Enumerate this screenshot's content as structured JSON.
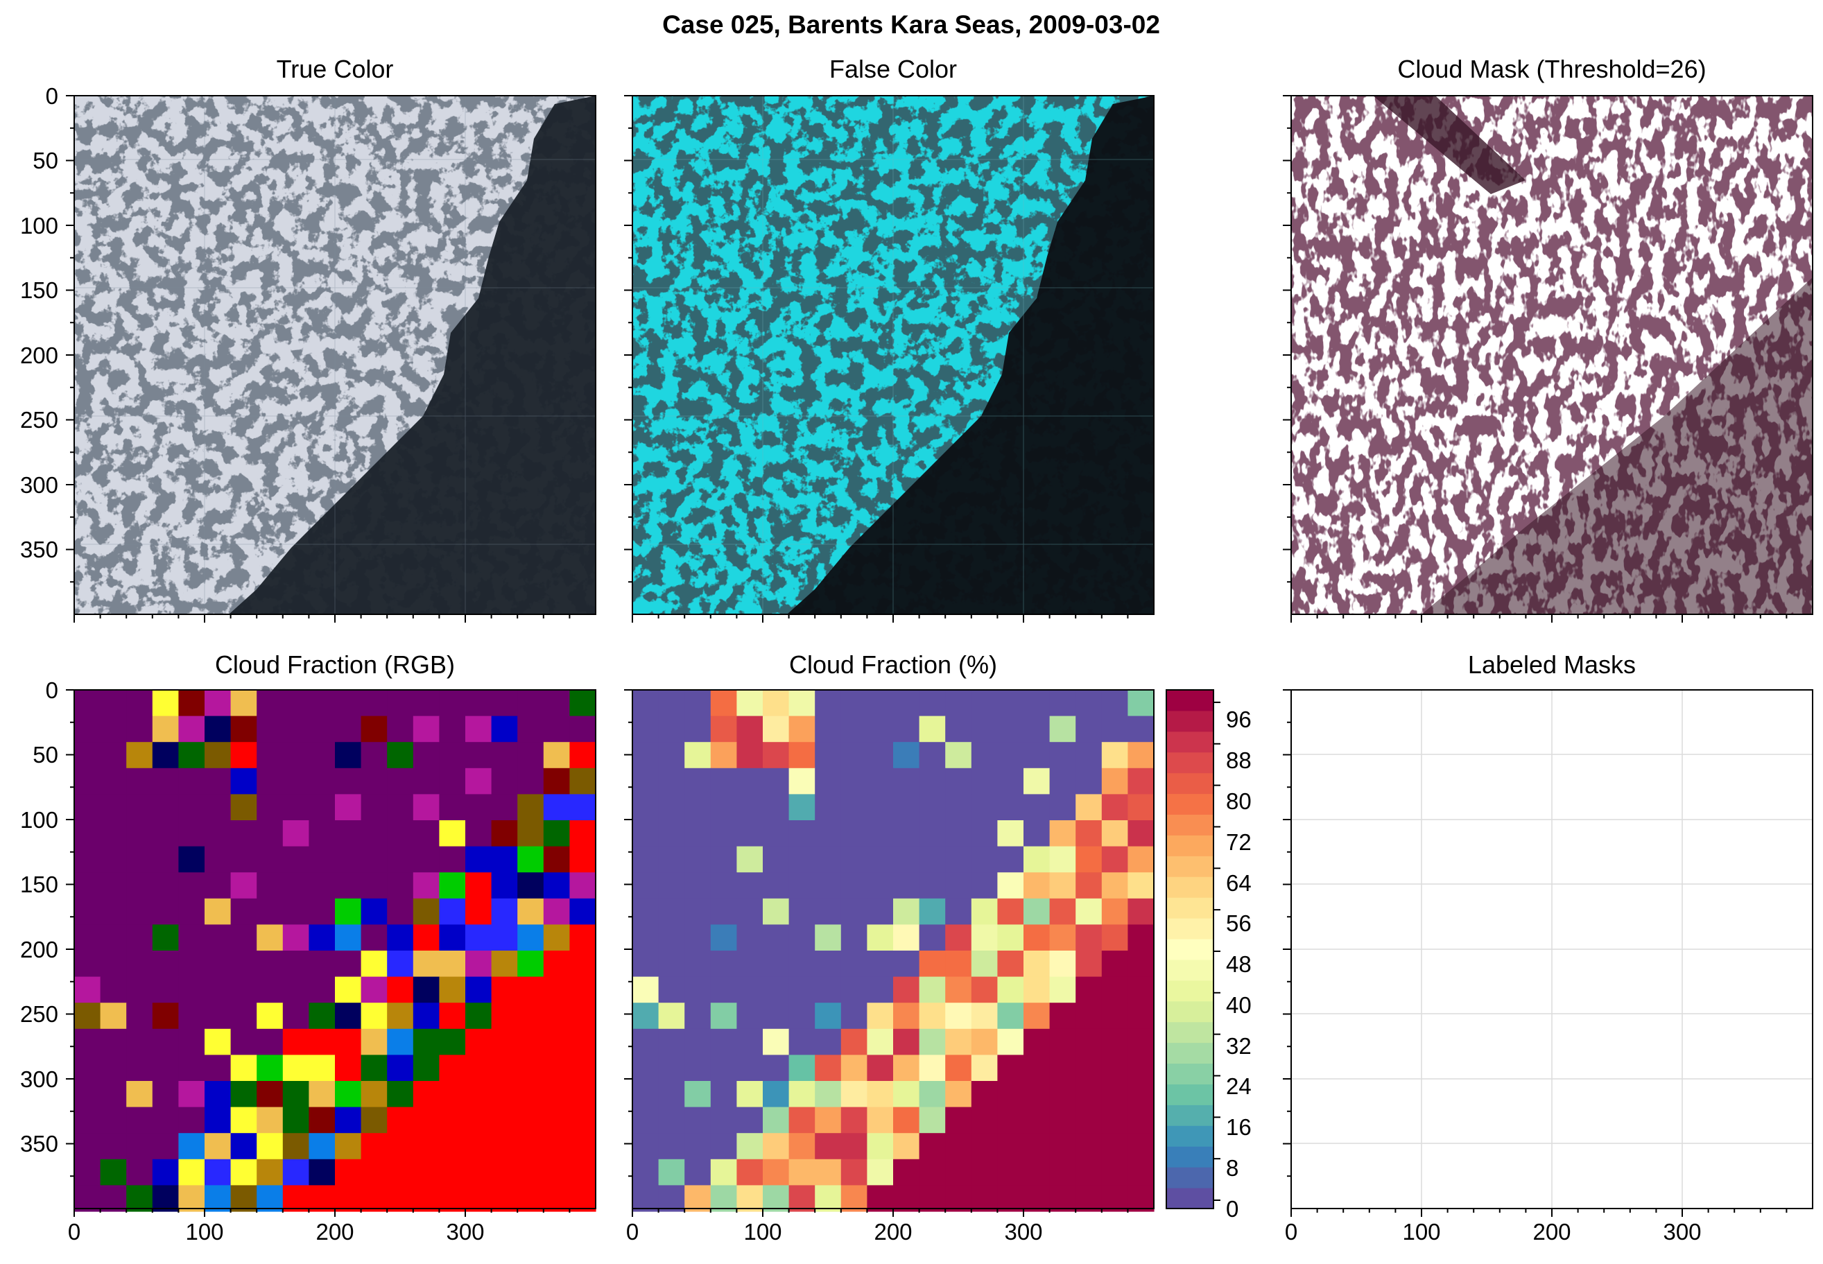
{
  "figure": {
    "suptitle": "Case 025, Barents Kara Seas, 2009-03-02"
  },
  "chart_data": [
    {
      "id": "true_color",
      "type": "image",
      "title": "True Color",
      "xlim": [
        0,
        400
      ],
      "ylim": [
        400,
        0
      ],
      "yticks": [
        "0",
        "50",
        "100",
        "150",
        "200",
        "250",
        "300",
        "350"
      ],
      "colors": {
        "ice": "#d4d8e2",
        "water": "#1c232c",
        "cloud": "#e6e6ea"
      }
    },
    {
      "id": "false_color",
      "type": "image",
      "title": "False Color",
      "xlim": [
        0,
        400
      ],
      "ylim": [
        400,
        0
      ],
      "colors": {
        "ice": "#1fd6e0",
        "water": "#0c1116",
        "cloud": "#b9eef2"
      }
    },
    {
      "id": "cloud_mask",
      "type": "image",
      "title": "Cloud Mask (Threshold=26)",
      "xlim": [
        0,
        400
      ],
      "ylim": [
        400,
        0
      ],
      "colors": {
        "mask": "#3a1728",
        "background": "#ffffff"
      }
    },
    {
      "id": "cloud_fraction_rgb",
      "type": "heatmap",
      "title": "Cloud Fraction (RGB)",
      "xlim": [
        0,
        400
      ],
      "ylim": [
        400,
        0
      ],
      "xticks": [
        "0",
        "100",
        "200",
        "300"
      ],
      "yticks": [
        "0",
        "50",
        "100",
        "150",
        "200",
        "250",
        "300",
        "350"
      ],
      "grid_size": 20,
      "palette": [
        "#6b006b",
        "#00005e",
        "#0000c8",
        "#0a7ee8",
        "#006600",
        "#00cc00",
        "#b5179e",
        "#b8860b",
        "#ff0000",
        "#ffff33",
        "#f0be50",
        "#800000",
        "#7b5a00",
        "#2828ff"
      ]
    },
    {
      "id": "cloud_fraction_pct",
      "type": "heatmap",
      "title": "Cloud Fraction (%)",
      "xlim": [
        0,
        400
      ],
      "ylim": [
        400,
        0
      ],
      "xticks": [
        "0",
        "100",
        "200",
        "300"
      ],
      "grid_size": 20,
      "colorbar": {
        "ticks": [
          "0",
          "8",
          "16",
          "24",
          "32",
          "40",
          "48",
          "56",
          "64",
          "72",
          "80",
          "88",
          "96"
        ],
        "levels": 25,
        "colormap": "Spectral_r"
      }
    },
    {
      "id": "labeled_masks",
      "type": "image",
      "title": "Labeled Masks",
      "xlim": [
        0,
        400
      ],
      "ylim": [
        400,
        0
      ],
      "xticks": [
        "0",
        "100",
        "200",
        "300"
      ],
      "grid": true
    }
  ]
}
